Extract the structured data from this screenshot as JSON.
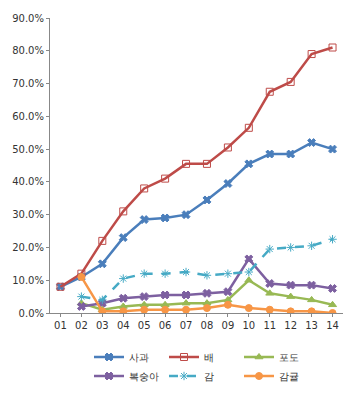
{
  "chart_data": {
    "type": "line",
    "categories": [
      "01",
      "02",
      "03",
      "04",
      "05",
      "06",
      "07",
      "08",
      "09",
      "10",
      "11",
      "12",
      "13",
      "14"
    ],
    "ylim": [
      0,
      90
    ],
    "yticks": [
      {
        "value": 0,
        "label": "0.0%"
      },
      {
        "value": 10,
        "label": "10.0%"
      },
      {
        "value": 20,
        "label": "20.0%"
      },
      {
        "value": 30,
        "label": "30.0%"
      },
      {
        "value": 40,
        "label": "40.0%"
      },
      {
        "value": 50,
        "label": "50.0%"
      },
      {
        "value": 60,
        "label": "60.0%"
      },
      {
        "value": 70,
        "label": "70.0%"
      },
      {
        "value": 80,
        "label": "80.0%"
      },
      {
        "value": 90,
        "label": "90.0%"
      }
    ],
    "grid": false,
    "legend": "bottom",
    "series": [
      {
        "name": "사과",
        "color": "#4a7ebb",
        "marker": "x",
        "line_style": "solid",
        "values": [
          8,
          11,
          15,
          23,
          28.5,
          29,
          30,
          34.5,
          39.5,
          45.5,
          48.5,
          48.5,
          52,
          50
        ]
      },
      {
        "name": "배",
        "color": "#be4b48",
        "marker": "square-open",
        "line_style": "solid",
        "values": [
          8,
          12,
          22,
          31,
          38,
          41,
          45.5,
          45.5,
          50.5,
          56.5,
          67.5,
          70.5,
          79,
          81
        ]
      },
      {
        "name": "포도",
        "color": "#98b954",
        "marker": "triangle-up",
        "line_style": "solid",
        "values": [
          null,
          3,
          1,
          2,
          2.5,
          2.5,
          3,
          3,
          4,
          10,
          6,
          5,
          4,
          2.5
        ]
      },
      {
        "name": "복숭아",
        "color": "#7d60a0",
        "marker": "x",
        "line_style": "solid",
        "values": [
          null,
          2,
          3,
          4.5,
          5,
          5.5,
          5.5,
          6,
          6.5,
          16.5,
          9,
          8.5,
          8.5,
          7.5
        ]
      },
      {
        "name": "감",
        "color": "#46aac5",
        "marker": "asterisk-open",
        "line_style": "dash",
        "values": [
          null,
          5,
          4,
          10.5,
          12,
          12,
          12.5,
          11.5,
          12,
          12.5,
          19.5,
          20,
          20.5,
          22.5
        ]
      },
      {
        "name": "감귤",
        "color": "#f79646",
        "marker": "circle",
        "line_style": "solid",
        "values": [
          null,
          11,
          0.5,
          0.5,
          1,
          1,
          1,
          1.5,
          2.5,
          1.5,
          1,
          0.5,
          0.5,
          0
        ]
      }
    ]
  }
}
